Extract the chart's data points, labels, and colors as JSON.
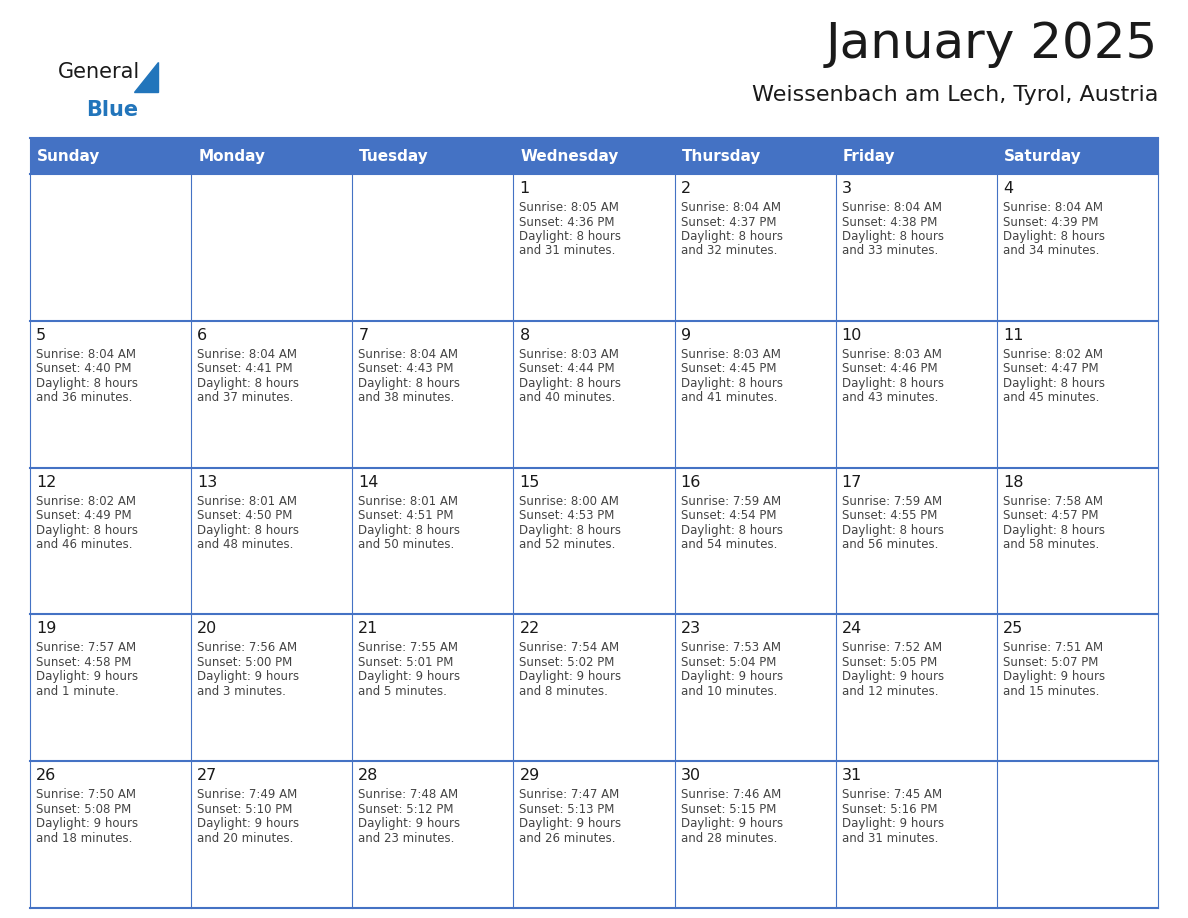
{
  "title": "January 2025",
  "subtitle": "Weissenbach am Lech, Tyrol, Austria",
  "header_bg": "#4472C4",
  "header_text": "#FFFFFF",
  "border_color": "#4472C4",
  "cell_bg": "#FFFFFF",
  "day_headers": [
    "Sunday",
    "Monday",
    "Tuesday",
    "Wednesday",
    "Thursday",
    "Friday",
    "Saturday"
  ],
  "title_color": "#1a1a1a",
  "subtitle_color": "#1a1a1a",
  "day_num_color": "#1a1a1a",
  "cell_text_color": "#444444",
  "days": [
    {
      "date": 1,
      "row": 0,
      "col": 3,
      "sunrise": "8:05 AM",
      "sunset": "4:36 PM",
      "daylight": "8 hours\nand 31 minutes."
    },
    {
      "date": 2,
      "row": 0,
      "col": 4,
      "sunrise": "8:04 AM",
      "sunset": "4:37 PM",
      "daylight": "8 hours\nand 32 minutes."
    },
    {
      "date": 3,
      "row": 0,
      "col": 5,
      "sunrise": "8:04 AM",
      "sunset": "4:38 PM",
      "daylight": "8 hours\nand 33 minutes."
    },
    {
      "date": 4,
      "row": 0,
      "col": 6,
      "sunrise": "8:04 AM",
      "sunset": "4:39 PM",
      "daylight": "8 hours\nand 34 minutes."
    },
    {
      "date": 5,
      "row": 1,
      "col": 0,
      "sunrise": "8:04 AM",
      "sunset": "4:40 PM",
      "daylight": "8 hours\nand 36 minutes."
    },
    {
      "date": 6,
      "row": 1,
      "col": 1,
      "sunrise": "8:04 AM",
      "sunset": "4:41 PM",
      "daylight": "8 hours\nand 37 minutes."
    },
    {
      "date": 7,
      "row": 1,
      "col": 2,
      "sunrise": "8:04 AM",
      "sunset": "4:43 PM",
      "daylight": "8 hours\nand 38 minutes."
    },
    {
      "date": 8,
      "row": 1,
      "col": 3,
      "sunrise": "8:03 AM",
      "sunset": "4:44 PM",
      "daylight": "8 hours\nand 40 minutes."
    },
    {
      "date": 9,
      "row": 1,
      "col": 4,
      "sunrise": "8:03 AM",
      "sunset": "4:45 PM",
      "daylight": "8 hours\nand 41 minutes."
    },
    {
      "date": 10,
      "row": 1,
      "col": 5,
      "sunrise": "8:03 AM",
      "sunset": "4:46 PM",
      "daylight": "8 hours\nand 43 minutes."
    },
    {
      "date": 11,
      "row": 1,
      "col": 6,
      "sunrise": "8:02 AM",
      "sunset": "4:47 PM",
      "daylight": "8 hours\nand 45 minutes."
    },
    {
      "date": 12,
      "row": 2,
      "col": 0,
      "sunrise": "8:02 AM",
      "sunset": "4:49 PM",
      "daylight": "8 hours\nand 46 minutes."
    },
    {
      "date": 13,
      "row": 2,
      "col": 1,
      "sunrise": "8:01 AM",
      "sunset": "4:50 PM",
      "daylight": "8 hours\nand 48 minutes."
    },
    {
      "date": 14,
      "row": 2,
      "col": 2,
      "sunrise": "8:01 AM",
      "sunset": "4:51 PM",
      "daylight": "8 hours\nand 50 minutes."
    },
    {
      "date": 15,
      "row": 2,
      "col": 3,
      "sunrise": "8:00 AM",
      "sunset": "4:53 PM",
      "daylight": "8 hours\nand 52 minutes."
    },
    {
      "date": 16,
      "row": 2,
      "col": 4,
      "sunrise": "7:59 AM",
      "sunset": "4:54 PM",
      "daylight": "8 hours\nand 54 minutes."
    },
    {
      "date": 17,
      "row": 2,
      "col": 5,
      "sunrise": "7:59 AM",
      "sunset": "4:55 PM",
      "daylight": "8 hours\nand 56 minutes."
    },
    {
      "date": 18,
      "row": 2,
      "col": 6,
      "sunrise": "7:58 AM",
      "sunset": "4:57 PM",
      "daylight": "8 hours\nand 58 minutes."
    },
    {
      "date": 19,
      "row": 3,
      "col": 0,
      "sunrise": "7:57 AM",
      "sunset": "4:58 PM",
      "daylight": "9 hours\nand 1 minute."
    },
    {
      "date": 20,
      "row": 3,
      "col": 1,
      "sunrise": "7:56 AM",
      "sunset": "5:00 PM",
      "daylight": "9 hours\nand 3 minutes."
    },
    {
      "date": 21,
      "row": 3,
      "col": 2,
      "sunrise": "7:55 AM",
      "sunset": "5:01 PM",
      "daylight": "9 hours\nand 5 minutes."
    },
    {
      "date": 22,
      "row": 3,
      "col": 3,
      "sunrise": "7:54 AM",
      "sunset": "5:02 PM",
      "daylight": "9 hours\nand 8 minutes."
    },
    {
      "date": 23,
      "row": 3,
      "col": 4,
      "sunrise": "7:53 AM",
      "sunset": "5:04 PM",
      "daylight": "9 hours\nand 10 minutes."
    },
    {
      "date": 24,
      "row": 3,
      "col": 5,
      "sunrise": "7:52 AM",
      "sunset": "5:05 PM",
      "daylight": "9 hours\nand 12 minutes."
    },
    {
      "date": 25,
      "row": 3,
      "col": 6,
      "sunrise": "7:51 AM",
      "sunset": "5:07 PM",
      "daylight": "9 hours\nand 15 minutes."
    },
    {
      "date": 26,
      "row": 4,
      "col": 0,
      "sunrise": "7:50 AM",
      "sunset": "5:08 PM",
      "daylight": "9 hours\nand 18 minutes."
    },
    {
      "date": 27,
      "row": 4,
      "col": 1,
      "sunrise": "7:49 AM",
      "sunset": "5:10 PM",
      "daylight": "9 hours\nand 20 minutes."
    },
    {
      "date": 28,
      "row": 4,
      "col": 2,
      "sunrise": "7:48 AM",
      "sunset": "5:12 PM",
      "daylight": "9 hours\nand 23 minutes."
    },
    {
      "date": 29,
      "row": 4,
      "col": 3,
      "sunrise": "7:47 AM",
      "sunset": "5:13 PM",
      "daylight": "9 hours\nand 26 minutes."
    },
    {
      "date": 30,
      "row": 4,
      "col": 4,
      "sunrise": "7:46 AM",
      "sunset": "5:15 PM",
      "daylight": "9 hours\nand 28 minutes."
    },
    {
      "date": 31,
      "row": 4,
      "col": 5,
      "sunrise": "7:45 AM",
      "sunset": "5:16 PM",
      "daylight": "9 hours\nand 31 minutes."
    }
  ],
  "logo_black": "#1a1a1a",
  "logo_blue": "#2275bb",
  "fig_width": 11.88,
  "fig_height": 9.18,
  "dpi": 100
}
